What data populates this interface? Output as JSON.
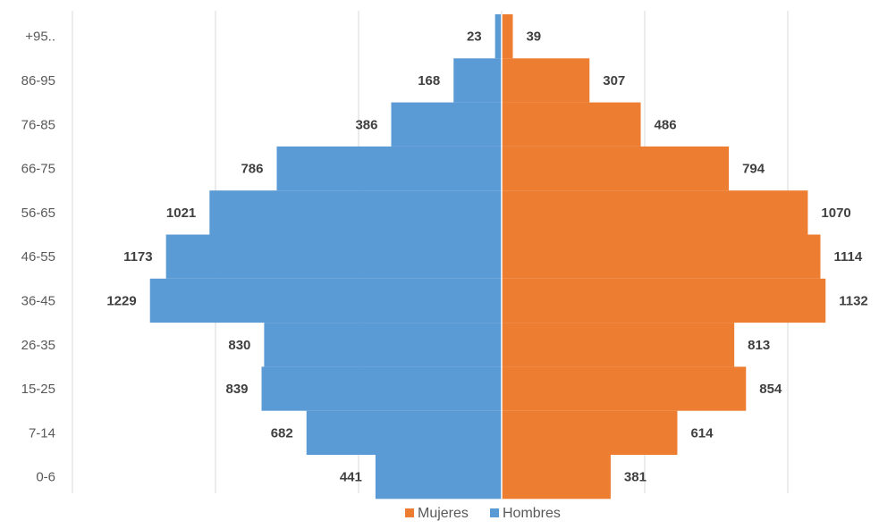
{
  "chart_data": {
    "type": "bar",
    "orientation": "horizontal",
    "title": "",
    "categories": [
      "0-6",
      "7-14",
      "15-25",
      "26-35",
      "36-45",
      "46-55",
      "56-65",
      "66-75",
      "76-85",
      "86-95",
      "+95.."
    ],
    "series": [
      {
        "name": "Mujeres",
        "color": "#ED7D31",
        "values": [
          381,
          614,
          854,
          813,
          1132,
          1114,
          1070,
          794,
          486,
          307,
          39
        ]
      },
      {
        "name": "Hombres",
        "color": "#5B9BD5",
        "values": [
          441,
          682,
          839,
          830,
          1229,
          1173,
          1021,
          786,
          386,
          168,
          23
        ]
      }
    ],
    "xlim": [
      -1200,
      1200
    ],
    "grid": true,
    "legend_position": "bottom"
  }
}
